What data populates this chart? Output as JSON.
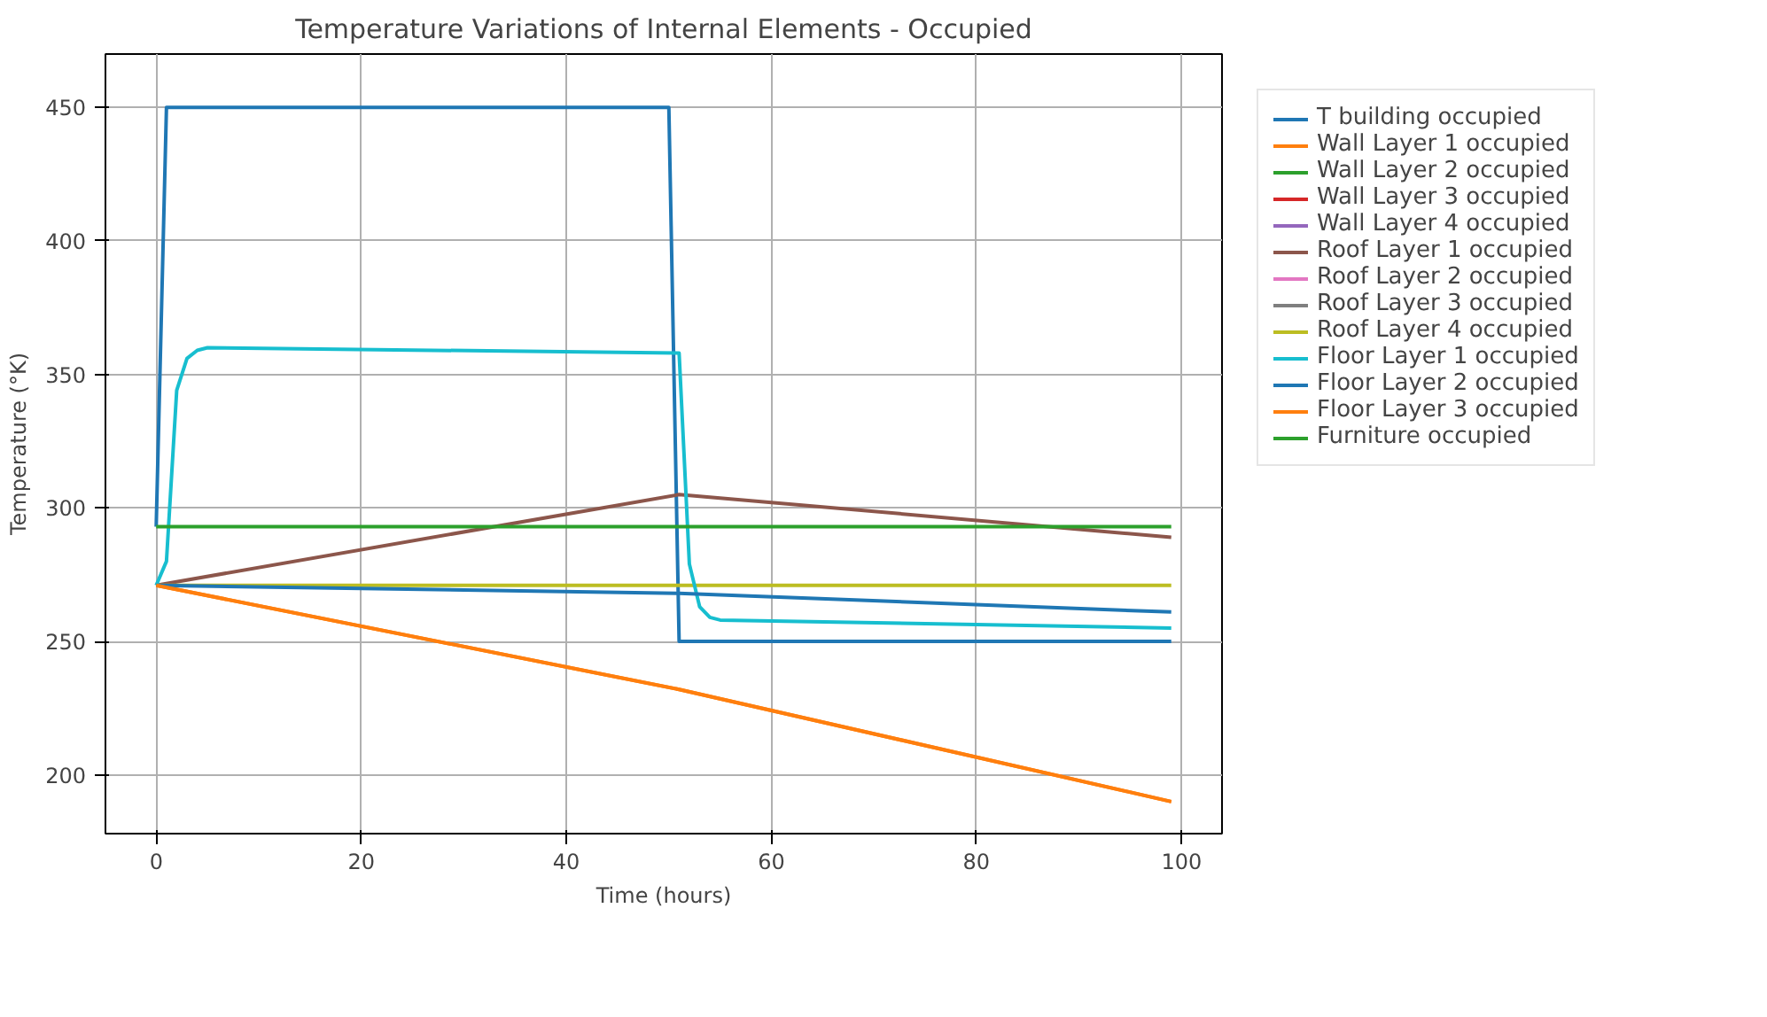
{
  "chart_data": {
    "type": "line",
    "title": "Temperature Variations of Internal Elements - Occupied",
    "xlabel": "Time (hours)",
    "ylabel": "Temperature (°K)",
    "xlim": [
      -4.95,
      103.95
    ],
    "ylim": [
      178,
      470
    ],
    "xticks": [
      0,
      20,
      40,
      60,
      80,
      100
    ],
    "yticks": [
      200,
      250,
      300,
      350,
      400,
      450
    ],
    "grid": true,
    "legend": "right",
    "line_style": "solid",
    "marker": "none",
    "series": [
      {
        "name": "T building occupied",
        "color": "#1f77b4",
        "x": [
          0,
          1,
          50,
          51,
          99
        ],
        "values": [
          293,
          450,
          450,
          250,
          250
        ]
      },
      {
        "name": "Wall Layer 1 occupied",
        "color": "#ff7f0e",
        "x": [
          0,
          51,
          99
        ],
        "values": [
          271,
          232,
          190
        ]
      },
      {
        "name": "Wall Layer 2 occupied",
        "color": "#2ca02c"
      },
      {
        "name": "Wall Layer 3 occupied",
        "color": "#d62728"
      },
      {
        "name": "Wall Layer 4 occupied",
        "color": "#9467bd"
      },
      {
        "name": "Roof Layer 1 occupied",
        "color": "#8c564b",
        "x": [
          0,
          51,
          99
        ],
        "values": [
          271,
          305,
          289
        ]
      },
      {
        "name": "Roof Layer 2 occupied",
        "color": "#e377c2"
      },
      {
        "name": "Roof Layer 3 occupied",
        "color": "#7f7f7f"
      },
      {
        "name": "Roof Layer 4 occupied",
        "color": "#bcbd22",
        "x": [
          0,
          99
        ],
        "values": [
          271,
          271
        ]
      },
      {
        "name": "Floor Layer 1 occupied",
        "color": "#17becf",
        "x": [
          0,
          1,
          2,
          3,
          4,
          5,
          51,
          52,
          53,
          54,
          55,
          99
        ],
        "values": [
          271,
          280,
          344,
          356,
          359,
          360,
          358,
          279,
          263,
          259,
          258,
          255
        ]
      },
      {
        "name": "Floor Layer 2 occupied",
        "color": "#1f77b4",
        "x": [
          0,
          51,
          99
        ],
        "values": [
          271,
          268,
          261
        ]
      },
      {
        "name": "Floor Layer 3 occupied",
        "color": "#ff7f0e",
        "x": [
          0,
          51,
          99
        ],
        "values": [
          271,
          232,
          190
        ]
      },
      {
        "name": "Furniture occupied",
        "color": "#2ca02c",
        "x": [
          0,
          99
        ],
        "values": [
          293,
          293
        ]
      }
    ]
  }
}
